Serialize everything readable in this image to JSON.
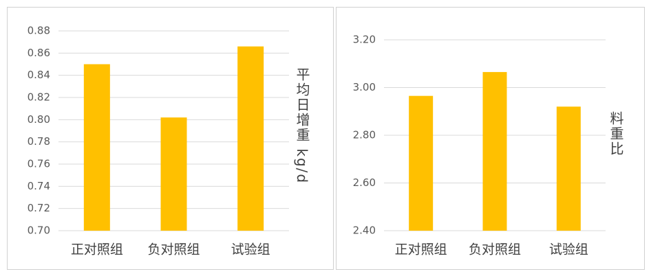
{
  "chart_data": [
    {
      "type": "bar",
      "y_label": "平均日增重 kg/d",
      "categories": [
        "正对照组",
        "负对照组",
        "试验组"
      ],
      "values": [
        0.85,
        0.802,
        0.866
      ],
      "color": "#ffc000",
      "ylim": [
        0.7,
        0.88
      ],
      "yticks": [
        {
          "value": 0.7,
          "label": "0.70"
        },
        0.72,
        0.74,
        0.76,
        0.78,
        {
          "value": 0.8,
          "label": "0.80"
        },
        0.82,
        0.84,
        0.86,
        0.88
      ],
      "grid": true
    },
    {
      "type": "bar",
      "y_label": "料重比",
      "categories": [
        "正对照组",
        "负对照组",
        "试验组"
      ],
      "values": [
        2.965,
        3.065,
        2.92
      ],
      "color": "#ffc000",
      "ylim": [
        2.4,
        3.2
      ],
      "yticks": [
        {
          "value": 2.4,
          "label": "2.40"
        },
        {
          "value": 2.6,
          "label": "2.60"
        },
        {
          "value": 2.8,
          "label": "2.80"
        },
        {
          "value": 3.0,
          "label": "3.00"
        },
        {
          "value": 3.2,
          "label": "3.20"
        }
      ],
      "grid": true
    }
  ]
}
